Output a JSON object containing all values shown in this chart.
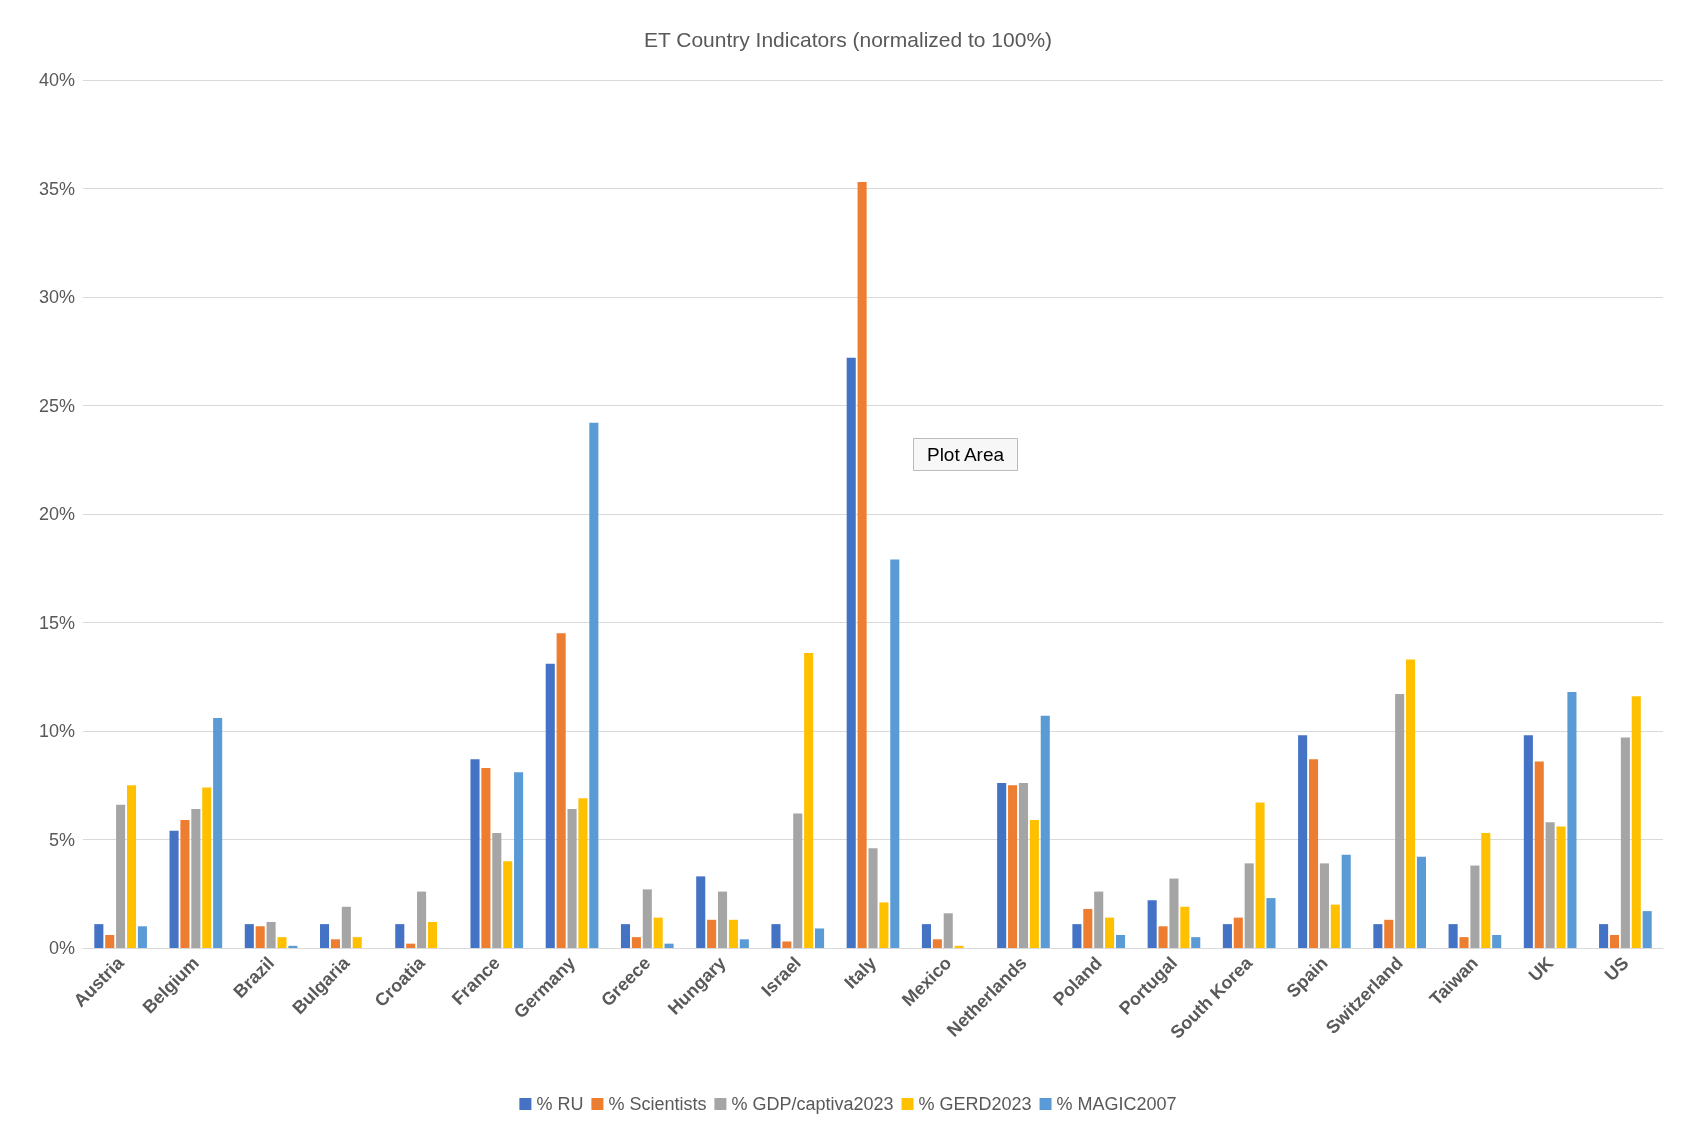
{
  "chart_data": {
    "type": "bar",
    "title": "ET Country Indicators (normalized to 100%)",
    "categories": [
      "Austria",
      "Belgium",
      "Brazil",
      "Bulgaria",
      "Croatia",
      "France",
      "Germany",
      "Greece",
      "Hungary",
      "Israel",
      "Italy",
      "Mexico",
      "Netherlands",
      "Poland",
      "Portugal",
      "South Korea",
      "Spain",
      "Switzerland",
      "Taiwan",
      "UK",
      "US"
    ],
    "series": [
      {
        "name": "% RU",
        "color": "#4472c4",
        "values": [
          1.1,
          5.4,
          1.1,
          1.1,
          1.1,
          8.7,
          13.1,
          1.1,
          3.3,
          1.1,
          27.2,
          1.1,
          7.6,
          1.1,
          2.2,
          1.1,
          9.8,
          1.1,
          1.1,
          9.8,
          1.1
        ]
      },
      {
        "name": "% Scientists",
        "color": "#ed7d31",
        "values": [
          0.6,
          5.9,
          1.0,
          0.4,
          0.2,
          8.3,
          14.5,
          0.5,
          1.3,
          0.3,
          35.3,
          0.4,
          7.5,
          1.8,
          1.0,
          1.4,
          8.7,
          1.3,
          0.5,
          8.6,
          0.6
        ]
      },
      {
        "name": "% GDP/captiva2023",
        "color": "#a5a5a5",
        "values": [
          6.6,
          6.4,
          1.2,
          1.9,
          2.6,
          5.3,
          6.4,
          2.7,
          2.6,
          6.2,
          4.6,
          1.6,
          7.6,
          2.6,
          3.2,
          3.9,
          3.9,
          11.7,
          3.8,
          5.8,
          9.7
        ]
      },
      {
        "name": "% GERD2023",
        "color": "#ffc000",
        "values": [
          7.5,
          7.4,
          0.5,
          0.5,
          1.2,
          4.0,
          6.9,
          1.4,
          1.3,
          13.6,
          2.1,
          0.1,
          5.9,
          1.4,
          1.9,
          6.7,
          2.0,
          13.3,
          5.3,
          5.6,
          11.6
        ]
      },
      {
        "name": "% MAGIC2007",
        "color": "#5b9bd5",
        "values": [
          1.0,
          10.6,
          0.1,
          null,
          null,
          8.1,
          24.2,
          0.2,
          0.4,
          0.9,
          17.9,
          null,
          10.7,
          0.6,
          0.5,
          2.3,
          4.3,
          4.2,
          0.6,
          11.8,
          1.7
        ]
      }
    ],
    "ylim": [
      0,
      40
    ],
    "yticks": [
      {
        "value": 0,
        "label": "0%"
      },
      {
        "value": 5,
        "label": "5%"
      },
      {
        "value": 10,
        "label": "10%"
      },
      {
        "value": 15,
        "label": "15%"
      },
      {
        "value": 20,
        "label": "20%"
      },
      {
        "value": 25,
        "label": "25%"
      },
      {
        "value": 30,
        "label": "30%"
      },
      {
        "value": 35,
        "label": "35%"
      },
      {
        "value": 40,
        "label": "40%"
      }
    ],
    "grid": "y",
    "legend": "bottom",
    "annotations": [
      "Plot Area"
    ]
  }
}
